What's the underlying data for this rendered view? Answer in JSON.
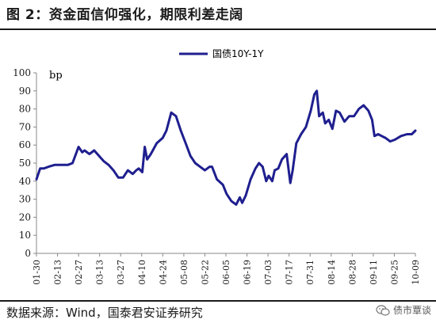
{
  "figure_title": "图 2：资金面信仰强化，期限利差走阔",
  "source": "数据来源：Wind，国泰君安证券研究",
  "watermark": "债市覃谈",
  "watermark_icon": "wechat-icon",
  "colors": {
    "series": "#1f1f8f",
    "axis": "#888888",
    "text": "#1a1a1a"
  },
  "chart_data": {
    "type": "line",
    "title": "",
    "xlabel": "",
    "ylabel": "bp",
    "ylim": [
      0,
      100
    ],
    "yticks": [
      0,
      10,
      20,
      30,
      40,
      50,
      60,
      70,
      80,
      90,
      100
    ],
    "grid": false,
    "legend_position": "top-center",
    "x_tick_labels": [
      "01-30",
      "02-13",
      "02-27",
      "03-13",
      "03-27",
      "04-10",
      "04-24",
      "05-08",
      "05-22",
      "06-05",
      "06-19",
      "07-03",
      "07-17",
      "07-31",
      "08-14",
      "08-28",
      "09-11",
      "09-25",
      "10-09"
    ],
    "series": [
      {
        "name": "国债10Y-1Y",
        "points": [
          [
            0,
            41
          ],
          [
            0.3,
            47
          ],
          [
            0.6,
            47
          ],
          [
            1,
            48
          ],
          [
            1.5,
            49
          ],
          [
            2,
            49
          ],
          [
            2.6,
            49
          ],
          [
            3,
            50
          ],
          [
            3.5,
            59
          ],
          [
            3.8,
            56
          ],
          [
            4,
            57
          ],
          [
            4.4,
            55
          ],
          [
            4.8,
            57
          ],
          [
            5.2,
            54
          ],
          [
            5.6,
            51
          ],
          [
            6,
            49
          ],
          [
            6.4,
            46
          ],
          [
            6.8,
            42
          ],
          [
            7.2,
            42
          ],
          [
            7.6,
            46
          ],
          [
            8,
            44
          ],
          [
            8.3,
            46
          ],
          [
            8.5,
            47
          ],
          [
            8.8,
            45
          ],
          [
            9,
            59
          ],
          [
            9.2,
            52
          ],
          [
            9.5,
            55
          ],
          [
            10,
            61
          ],
          [
            10.5,
            64
          ],
          [
            10.8,
            68
          ],
          [
            11.2,
            78
          ],
          [
            11.6,
            76
          ],
          [
            12,
            68
          ],
          [
            12.4,
            61
          ],
          [
            12.8,
            54
          ],
          [
            13.2,
            50
          ],
          [
            13.6,
            48
          ],
          [
            14,
            46
          ],
          [
            14.4,
            48
          ],
          [
            14.6,
            48
          ],
          [
            15,
            41
          ],
          [
            15.5,
            38
          ],
          [
            15.8,
            33
          ],
          [
            16.2,
            29
          ],
          [
            16.6,
            27
          ],
          [
            16.9,
            31
          ],
          [
            17.1,
            28
          ],
          [
            17.4,
            32
          ],
          [
            17.8,
            41
          ],
          [
            18.2,
            47
          ],
          [
            18.5,
            50
          ],
          [
            18.8,
            48
          ],
          [
            19.1,
            40
          ],
          [
            19.3,
            43
          ],
          [
            19.6,
            40
          ],
          [
            19.8,
            46
          ],
          [
            20.1,
            47
          ],
          [
            20.4,
            52
          ],
          [
            20.8,
            55
          ],
          [
            21.1,
            39
          ],
          [
            21.3,
            46
          ],
          [
            21.6,
            61
          ],
          [
            22,
            66
          ],
          [
            22.4,
            70
          ],
          [
            22.8,
            79
          ],
          [
            23.1,
            88
          ],
          [
            23.3,
            90
          ],
          [
            23.5,
            76
          ],
          [
            23.8,
            78
          ],
          [
            24,
            72
          ],
          [
            24.3,
            74
          ],
          [
            24.6,
            69
          ],
          [
            24.9,
            79
          ],
          [
            25.2,
            78
          ],
          [
            25.6,
            73
          ],
          [
            26,
            76
          ],
          [
            26.4,
            76
          ],
          [
            26.8,
            80
          ],
          [
            27.2,
            82
          ],
          [
            27.6,
            79
          ],
          [
            27.9,
            74
          ],
          [
            28.1,
            65
          ],
          [
            28.4,
            66
          ],
          [
            28.7,
            65
          ],
          [
            29,
            64
          ],
          [
            29.4,
            62
          ],
          [
            29.8,
            63
          ],
          [
            30.3,
            65
          ],
          [
            30.8,
            66
          ],
          [
            31.2,
            66
          ],
          [
            31.5,
            68
          ]
        ]
      }
    ]
  }
}
